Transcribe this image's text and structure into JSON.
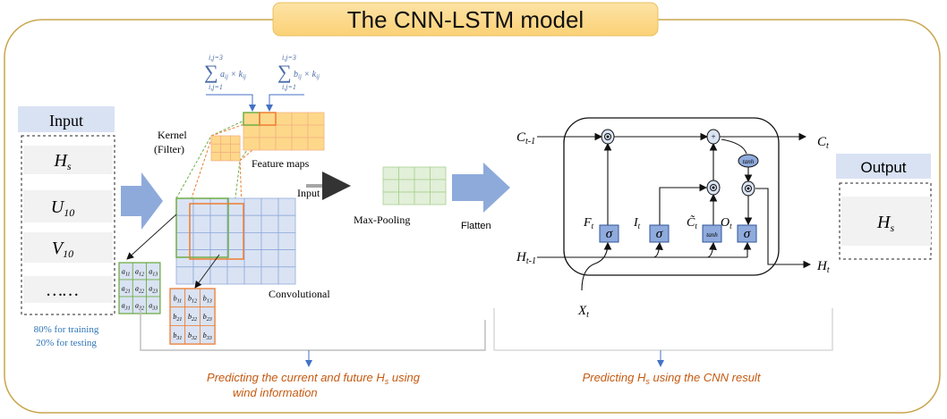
{
  "title": "The CNN-LSTM model",
  "colors": {
    "border": "#c9a64d",
    "title_fill": "#fcd889",
    "arrow_blue": "#8eaadb",
    "input_header": "#d9e2f3",
    "cell_blue": "#dae3f3",
    "feature_orange": "#fdd88a",
    "maxpool_green": "#e2efd9",
    "gate_fill": "#8faadc",
    "caption": "#c55a11",
    "split_text": "#2e75b6"
  },
  "input_panel": {
    "header": "Input",
    "rows": [
      {
        "main": "H",
        "sub": "s"
      },
      {
        "main": "U",
        "sub": "10"
      },
      {
        "main": "V",
        "sub": "10"
      },
      {
        "main": "……",
        "sub": ""
      }
    ],
    "split": [
      "80% for training",
      "20% for testing"
    ]
  },
  "cnn": {
    "formula_a": {
      "top": "i,j=3",
      "bottom": "i,j=1",
      "body": "a",
      "sub": "ij",
      "times": " × k",
      "sub2": "ij"
    },
    "formula_b": {
      "top": "i,j=3",
      "bottom": "i,j=1",
      "body": "b",
      "sub": "ij",
      "times": " × k",
      "sub2": "ij"
    },
    "kernel_label": [
      "Kernel",
      "(Filter)"
    ],
    "feature_maps_label": "Feature maps",
    "input_label": "Input",
    "conv_label": "Convolutional",
    "matrix_a": [
      "a11",
      "a12",
      "a13",
      "a21",
      "a22",
      "a23",
      "a31",
      "a32",
      "a33"
    ],
    "matrix_b": [
      "b11",
      "b12",
      "b13",
      "b21",
      "b22",
      "b23",
      "b31",
      "b32",
      "b33"
    ],
    "maxpool_label": "Max-Pooling",
    "flatten_label": "Flatten"
  },
  "lstm": {
    "c_prev": {
      "main": "C",
      "sub": "t-1"
    },
    "c_next": {
      "main": "C",
      "sub": "t"
    },
    "h_prev": {
      "main": "H",
      "sub": "t-1"
    },
    "h_next": {
      "main": "H",
      "sub": "t"
    },
    "x_in": {
      "main": "X",
      "sub": "t"
    },
    "gates": [
      {
        "label": "F",
        "sub": "t",
        "fn": "σ"
      },
      {
        "label": "I",
        "sub": "t",
        "fn": "σ"
      },
      {
        "label": "C̃",
        "sub": "t",
        "fn": "tanh"
      },
      {
        "label": "O",
        "sub": "t",
        "fn": "σ"
      }
    ],
    "tanh_node": "tanh",
    "plus": "+"
  },
  "output_panel": {
    "header": "Output",
    "value": {
      "main": "H",
      "sub": "s"
    }
  },
  "captions": {
    "left": [
      "Predicting the current and future H",
      "s",
      " using",
      "wind information"
    ],
    "right": [
      "Predicting H",
      "s",
      " using the CNN result"
    ]
  }
}
